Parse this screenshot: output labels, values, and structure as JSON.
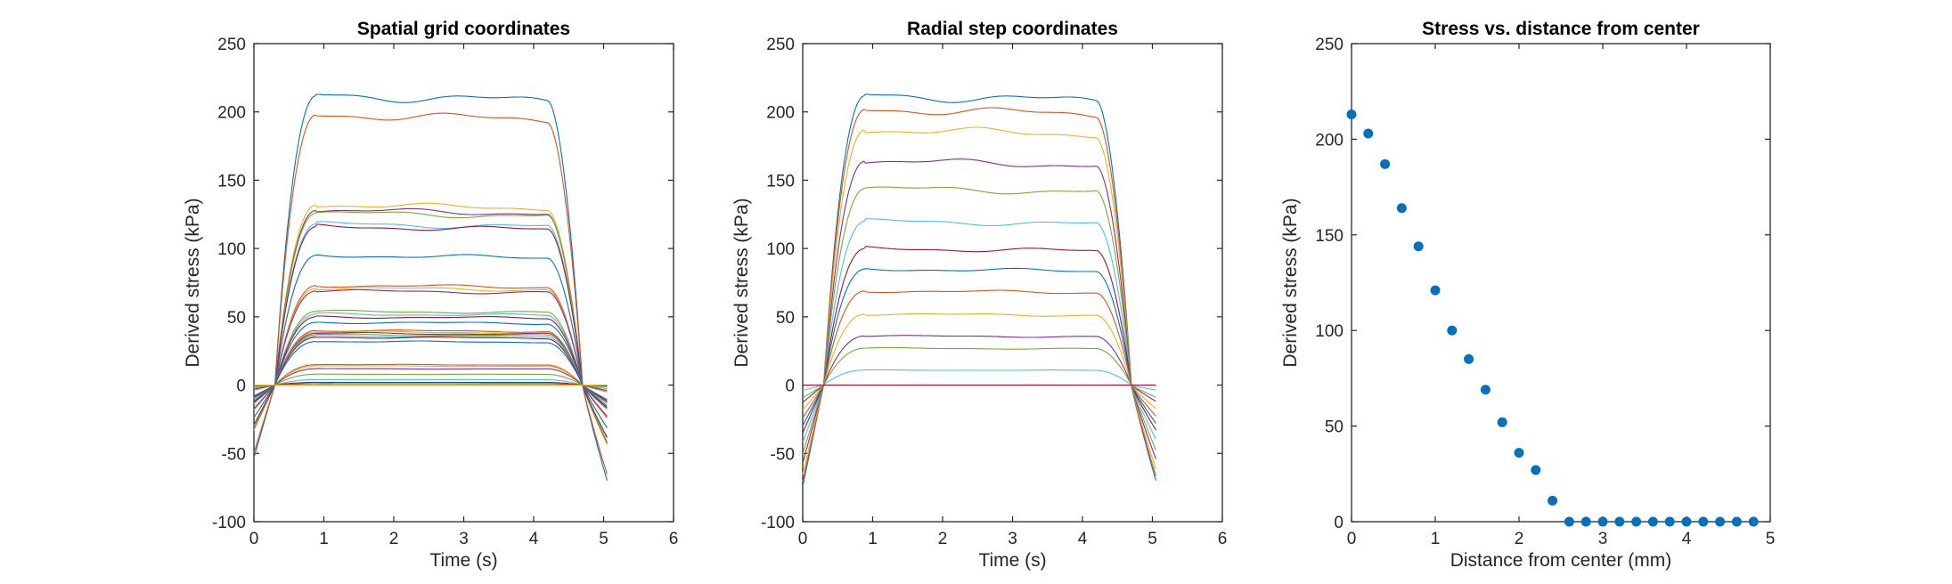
{
  "colors": [
    "#0072BD",
    "#D95319",
    "#EDB120",
    "#7E2F8E",
    "#77AC30",
    "#4DBEEE",
    "#A2142F"
  ],
  "chart_data": [
    {
      "type": "line",
      "title": "Spatial grid coordinates",
      "xlabel": "Time (s)",
      "ylabel": "Derived stress (kPa)",
      "xlim": [
        0,
        6
      ],
      "ylim": [
        -100,
        250
      ],
      "xticks": [
        "0",
        "1",
        "2",
        "3",
        "4",
        "5",
        "6"
      ],
      "yticks": [
        "-100",
        "-50",
        "0",
        "50",
        "100",
        "150",
        "200",
        "250"
      ],
      "series_plateaus": [
        212,
        198,
        132,
        128,
        126,
        118,
        116,
        95,
        73,
        71,
        69,
        54,
        52,
        50,
        46,
        40,
        39,
        38,
        37,
        36,
        35,
        32,
        15,
        14,
        12,
        8,
        4,
        2,
        1,
        0,
        0
      ],
      "trace_shape": {
        "onset_start": 0.0,
        "onset_pre_ratio": -0.25,
        "rise_end": 0.3,
        "plateau_start": 0.9,
        "plateau_end": 4.2,
        "fall_zero": 4.7,
        "end": 5.05,
        "end_ratio": -0.33
      }
    },
    {
      "type": "line",
      "title": "Radial step coordinates",
      "xlabel": "Time (s)",
      "ylabel": "Derived stress (kPa)",
      "xlim": [
        0,
        6
      ],
      "ylim": [
        -100,
        250
      ],
      "xticks": [
        "0",
        "1",
        "2",
        "3",
        "4",
        "5",
        "6"
      ],
      "yticks": [
        "-100",
        "-50",
        "0",
        "50",
        "100",
        "150",
        "200",
        "250"
      ],
      "series_plateaus": [
        212,
        202,
        187,
        164,
        144,
        120,
        100,
        85,
        69,
        52,
        36,
        27,
        11,
        0
      ],
      "trace_shape": {
        "onset_start": 0.0,
        "onset_pre_ratio": -0.35,
        "rise_end": 0.3,
        "plateau_start": 0.9,
        "plateau_end": 4.2,
        "fall_zero": 4.7,
        "end": 5.05,
        "end_ratio": -0.33
      }
    },
    {
      "type": "scatter",
      "title": "Stress vs. distance from center",
      "xlabel": "Distance from center (mm)",
      "ylabel": "Derived stress (kPa)",
      "xlim": [
        0,
        5
      ],
      "ylim": [
        0,
        250
      ],
      "xticks": [
        "0",
        "1",
        "2",
        "3",
        "4",
        "5"
      ],
      "yticks": [
        "0",
        "50",
        "100",
        "150",
        "200",
        "250"
      ],
      "x": [
        0,
        0.2,
        0.4,
        0.6,
        0.8,
        1.0,
        1.2,
        1.4,
        1.6,
        1.8,
        2.0,
        2.2,
        2.4,
        2.6,
        2.8,
        3.0,
        3.2,
        3.4,
        3.6,
        3.8,
        4.0,
        4.2,
        4.4,
        4.6,
        4.8
      ],
      "y": [
        213,
        203,
        187,
        164,
        144,
        121,
        100,
        85,
        69,
        52,
        36,
        27,
        11,
        0,
        0,
        0,
        0,
        0,
        0,
        0,
        0,
        0,
        0,
        0,
        0
      ],
      "marker_color": "#0072BD"
    }
  ]
}
